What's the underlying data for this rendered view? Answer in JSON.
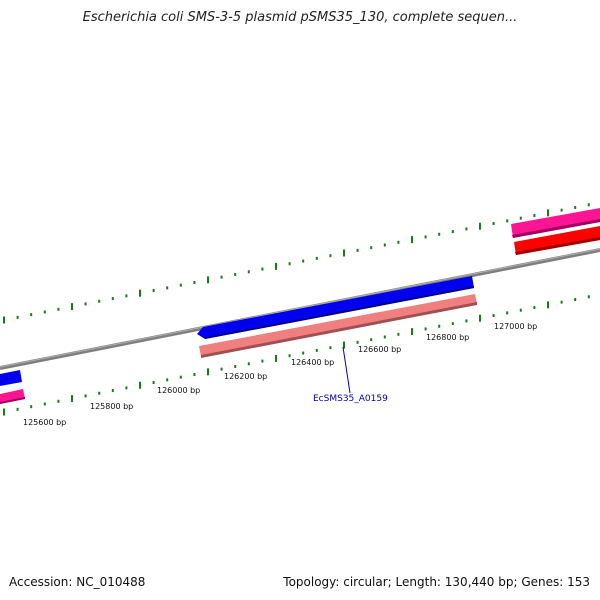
{
  "title": "Escherichia coli SMS-3-5 plasmid pSMS35_130, complete sequen...",
  "footer": {
    "accession": "Accession: NC_010488",
    "summary": "Topology: circular; Length: 130,440 bp; Genes: 153"
  },
  "map": {
    "scale_labels": [
      "125600 bp",
      "125800 bp",
      "126000 bp",
      "126200 bp",
      "126400 bp",
      "126600 bp",
      "126800 bp",
      "127000 bp"
    ],
    "highlighted_gene": "EcSMS35_A0159",
    "colors": {
      "backbone": "#808080",
      "cds_forward": "#0000ee",
      "cds_translated": "#f08080",
      "gene_pink": "#ff1493",
      "gene_red": "#ff0000",
      "ticks": "#1a7a1a",
      "label_blue": "#0000aa"
    }
  }
}
